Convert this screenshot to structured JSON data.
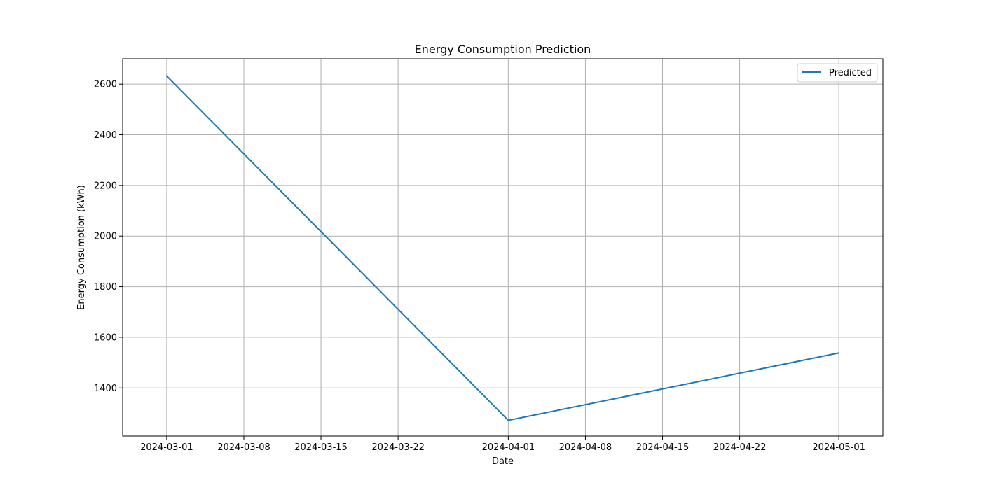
{
  "chart_data": {
    "type": "line",
    "title": "Energy Consumption Prediction",
    "xlabel": "Date",
    "ylabel": "Energy Consumption (kWh)",
    "x_type": "date",
    "xlim": [
      "2024-02-26",
      "2024-05-05"
    ],
    "ylim": [
      1210,
      2700
    ],
    "x_ticks": [
      "2024-03-01",
      "2024-03-08",
      "2024-03-15",
      "2024-03-22",
      "2024-04-01",
      "2024-04-08",
      "2024-04-15",
      "2024-04-22",
      "2024-05-01"
    ],
    "y_ticks": [
      1400,
      1600,
      1800,
      2000,
      2200,
      2400,
      2600
    ],
    "grid": true,
    "legend": {
      "position": "top-right",
      "entries": [
        "Predicted"
      ]
    },
    "series": [
      {
        "name": "Predicted",
        "color": "#1f77b4",
        "x": [
          "2024-03-01",
          "2024-04-01",
          "2024-05-01"
        ],
        "values": [
          2632,
          1272,
          1538
        ]
      }
    ]
  }
}
